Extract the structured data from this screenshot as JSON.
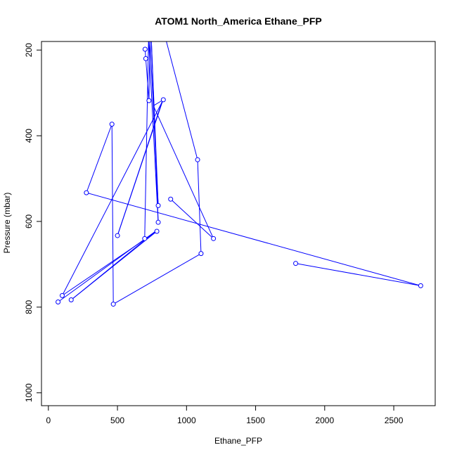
{
  "chart_data": {
    "type": "line",
    "title": "ATOM1 North_America Ethane_PFP",
    "xlabel": "Ethane_PFP",
    "ylabel": "Pressure (mbar)",
    "xlim": [
      -50,
      2800
    ],
    "ylim": [
      1030,
      180
    ],
    "y_reversed": true,
    "grid": false,
    "series_color": "#0000ff",
    "x_ticks": [
      0,
      500,
      1000,
      1500,
      2000,
      2500
    ],
    "y_ticks": [
      200,
      400,
      600,
      800,
      1000
    ],
    "series": [
      {
        "points": [
          {
            "x": 700,
            "y": 198,
            "marker": true
          },
          {
            "x": 705,
            "y": 220,
            "marker": true
          },
          {
            "x": 728,
            "y": 318,
            "marker": true
          },
          {
            "x": 832,
            "y": 316,
            "marker": true
          },
          {
            "x": 460,
            "y": 373,
            "marker": true
          },
          {
            "x": 1080,
            "y": 456,
            "marker": true
          },
          {
            "x": 275,
            "y": 533,
            "marker": true
          },
          {
            "x": 885,
            "y": 548,
            "marker": true
          },
          {
            "x": 795,
            "y": 563,
            "marker": true
          },
          {
            "x": 795,
            "y": 602,
            "marker": true
          },
          {
            "x": 785,
            "y": 623,
            "marker": true
          },
          {
            "x": 500,
            "y": 633,
            "marker": true
          },
          {
            "x": 697,
            "y": 640,
            "marker": true
          },
          {
            "x": 1195,
            "y": 640,
            "marker": true
          },
          {
            "x": 1105,
            "y": 675,
            "marker": true
          },
          {
            "x": 1790,
            "y": 698,
            "marker": true
          },
          {
            "x": 2695,
            "y": 750,
            "marker": true
          },
          {
            "x": 100,
            "y": 773,
            "marker": true
          },
          {
            "x": 165,
            "y": 783,
            "marker": true
          },
          {
            "x": 70,
            "y": 788,
            "marker": true
          },
          {
            "x": 470,
            "y": 793,
            "marker": true
          }
        ],
        "segments": [
          [
            [
              700,
              198
            ],
            [
              705,
              220
            ]
          ],
          [
            [
              705,
              220
            ],
            [
              728,
              318
            ]
          ],
          [
            [
              728,
              318
            ],
            [
              735,
              175
            ]
          ],
          [
            [
              735,
              175
            ],
            [
              795,
              563
            ]
          ],
          [
            [
              795,
              563
            ],
            [
              745,
              175
            ]
          ],
          [
            [
              745,
              175
            ],
            [
              795,
              602
            ]
          ],
          [
            [
              795,
              602
            ],
            [
              725,
              175
            ]
          ],
          [
            [
              725,
              175
            ],
            [
              697,
              640
            ]
          ],
          [
            [
              832,
              316
            ],
            [
              760,
              330
            ]
          ],
          [
            [
              760,
              330
            ],
            [
              1195,
              640
            ]
          ],
          [
            [
              1195,
              640
            ],
            [
              885,
              548
            ]
          ],
          [
            [
              825,
              318
            ],
            [
              500,
              633
            ]
          ],
          [
            [
              500,
              633
            ],
            [
              828,
              318
            ]
          ],
          [
            [
              828,
              318
            ],
            [
              100,
              773
            ]
          ],
          [
            [
              100,
              773
            ],
            [
              785,
              623
            ]
          ],
          [
            [
              785,
              623
            ],
            [
              165,
              783
            ]
          ],
          [
            [
              165,
              783
            ],
            [
              775,
              623
            ]
          ],
          [
            [
              775,
              623
            ],
            [
              70,
              788
            ]
          ],
          [
            [
              460,
              373
            ],
            [
              470,
              793
            ]
          ],
          [
            [
              470,
              793
            ],
            [
              1105,
              675
            ]
          ],
          [
            [
              1105,
              675
            ],
            [
              1080,
              456
            ]
          ],
          [
            [
              1080,
              456
            ],
            [
              850,
              175
            ]
          ],
          [
            [
              460,
              373
            ],
            [
              275,
              533
            ]
          ],
          [
            [
              275,
              533
            ],
            [
              2695,
              750
            ]
          ],
          [
            [
              2695,
              750
            ],
            [
              1790,
              698
            ]
          ]
        ]
      }
    ]
  }
}
